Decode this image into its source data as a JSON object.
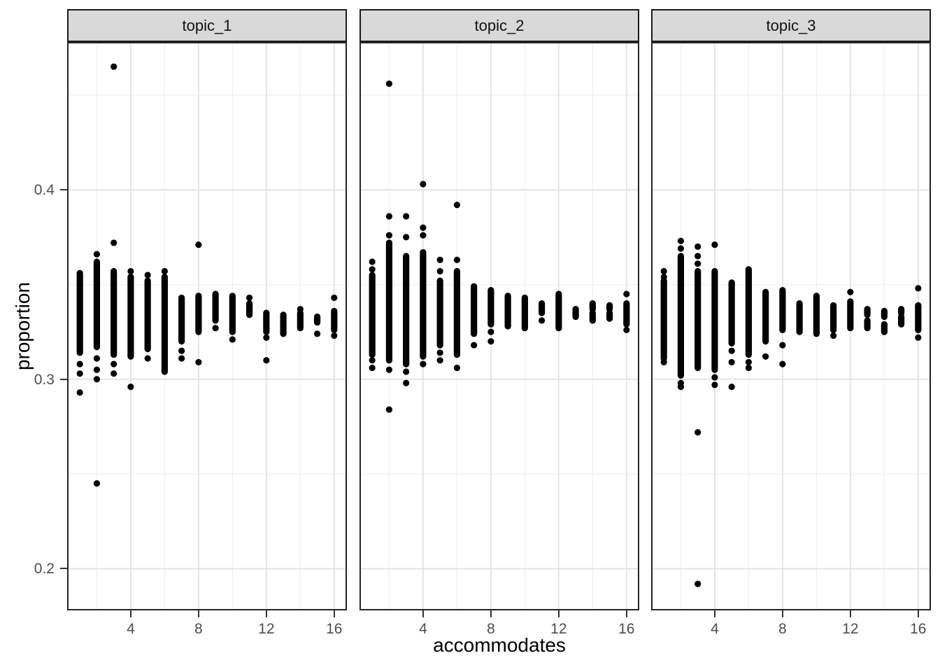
{
  "style": {
    "background": "#ffffff",
    "point_color": "#000000",
    "strip_fill": "#d9d9d9",
    "strip_text_color": "#111111",
    "panel_border_color": "#262626",
    "axis_text_color": "#4d4d4d",
    "axis_title_color": "#000000",
    "tick_color": "#333333",
    "grid_major_color": "#e4e4e4",
    "grid_minor_color": "#f1f1f1"
  },
  "chart_data": {
    "type": "scatter",
    "title": "",
    "xlabel": "accommodates",
    "ylabel": "proportion",
    "facet_labels": [
      "topic_1",
      "topic_2",
      "topic_3"
    ],
    "xlim": [
      0.25,
      16.75
    ],
    "ylim": [
      0.178,
      0.478
    ],
    "x_major_ticks": [
      4,
      8,
      12,
      16
    ],
    "y_major_ticks": [
      0.2,
      0.3,
      0.4
    ],
    "x_minor_gridlines": [
      2,
      6,
      10,
      14
    ],
    "y_minor_gridlines": [
      0.25,
      0.35,
      0.45
    ],
    "grid": true,
    "legend": false,
    "note": "Each column is a dense stack of overplotted black points; segments give [min,max] proportion of continuous point runs per accommodates value, dots are isolated points.",
    "panels": [
      {
        "label": "topic_1",
        "columns": [
          {
            "x": 1,
            "segments": [
              [
                0.314,
                0.356
              ]
            ],
            "dots": [
              0.308,
              0.303,
              0.293
            ]
          },
          {
            "x": 2,
            "segments": [
              [
                0.317,
                0.362
              ]
            ],
            "dots": [
              0.366,
              0.311,
              0.305,
              0.3,
              0.245
            ]
          },
          {
            "x": 3,
            "segments": [
              [
                0.313,
                0.356
              ]
            ],
            "dots": [
              0.465,
              0.372,
              0.357,
              0.308,
              0.303
            ]
          },
          {
            "x": 4,
            "segments": [
              [
                0.312,
                0.354
              ]
            ],
            "dots": [
              0.357,
              0.296
            ]
          },
          {
            "x": 5,
            "segments": [
              [
                0.316,
                0.352
              ]
            ],
            "dots": [
              0.355,
              0.311
            ]
          },
          {
            "x": 6,
            "segments": [
              [
                0.304,
                0.354
              ]
            ],
            "dots": [
              0.357
            ]
          },
          {
            "x": 7,
            "segments": [
              [
                0.32,
                0.343
              ]
            ],
            "dots": [
              0.315,
              0.311
            ]
          },
          {
            "x": 8,
            "segments": [
              [
                0.325,
                0.344
              ]
            ],
            "dots": [
              0.371,
              0.309
            ]
          },
          {
            "x": 9,
            "segments": [
              [
                0.331,
                0.345
              ]
            ],
            "dots": [
              0.327
            ]
          },
          {
            "x": 10,
            "segments": [
              [
                0.325,
                0.344
              ]
            ],
            "dots": [
              0.321
            ]
          },
          {
            "x": 11,
            "segments": [
              [
                0.334,
                0.34
              ]
            ],
            "dots": [
              0.343
            ]
          },
          {
            "x": 12,
            "segments": [
              [
                0.325,
                0.335
              ]
            ],
            "dots": [
              0.322,
              0.31
            ]
          },
          {
            "x": 13,
            "segments": [
              [
                0.324,
                0.334
              ]
            ],
            "dots": []
          },
          {
            "x": 14,
            "segments": [
              [
                0.327,
                0.335
              ]
            ],
            "dots": [
              0.337
            ]
          },
          {
            "x": 15,
            "segments": [
              [
                0.33,
                0.333
              ]
            ],
            "dots": [
              0.324
            ]
          },
          {
            "x": 16,
            "segments": [
              [
                0.326,
                0.336
              ]
            ],
            "dots": [
              0.343,
              0.323
            ]
          }
        ]
      },
      {
        "label": "topic_2",
        "columns": [
          {
            "x": 1,
            "segments": [
              [
                0.313,
                0.355
              ]
            ],
            "dots": [
              0.362,
              0.358,
              0.31,
              0.306
            ]
          },
          {
            "x": 2,
            "segments": [
              [
                0.31,
                0.372
              ]
            ],
            "dots": [
              0.456,
              0.386,
              0.376,
              0.305,
              0.284
            ]
          },
          {
            "x": 3,
            "segments": [
              [
                0.308,
                0.365
              ]
            ],
            "dots": [
              0.386,
              0.375,
              0.304,
              0.298
            ]
          },
          {
            "x": 4,
            "segments": [
              [
                0.312,
                0.367
              ]
            ],
            "dots": [
              0.403,
              0.38,
              0.376,
              0.308
            ]
          },
          {
            "x": 5,
            "segments": [
              [
                0.318,
                0.352
              ]
            ],
            "dots": [
              0.363,
              0.357,
              0.314,
              0.31
            ]
          },
          {
            "x": 6,
            "segments": [
              [
                0.313,
                0.357
              ]
            ],
            "dots": [
              0.392,
              0.363,
              0.306
            ]
          },
          {
            "x": 7,
            "segments": [
              [
                0.324,
                0.349
              ]
            ],
            "dots": [
              0.318
            ]
          },
          {
            "x": 8,
            "segments": [
              [
                0.329,
                0.347
              ]
            ],
            "dots": [
              0.325,
              0.32
            ]
          },
          {
            "x": 9,
            "segments": [
              [
                0.328,
                0.344
              ]
            ],
            "dots": []
          },
          {
            "x": 10,
            "segments": [
              [
                0.327,
                0.343
              ]
            ],
            "dots": []
          },
          {
            "x": 11,
            "segments": [
              [
                0.335,
                0.34
              ]
            ],
            "dots": [
              0.331
            ]
          },
          {
            "x": 12,
            "segments": [
              [
                0.327,
                0.345
              ]
            ],
            "dots": []
          },
          {
            "x": 13,
            "segments": [
              [
                0.333,
                0.337
              ]
            ],
            "dots": []
          },
          {
            "x": 14,
            "segments": [
              [
                0.337,
                0.34
              ],
              [
                0.331,
                0.335
              ]
            ],
            "dots": []
          },
          {
            "x": 15,
            "segments": [
              [
                0.337,
                0.339
              ],
              [
                0.332,
                0.335
              ]
            ],
            "dots": []
          },
          {
            "x": 16,
            "segments": [
              [
                0.329,
                0.34
              ]
            ],
            "dots": [
              0.345,
              0.326
            ]
          }
        ]
      },
      {
        "label": "topic_3",
        "columns": [
          {
            "x": 1,
            "segments": [
              [
                0.311,
                0.352
              ]
            ],
            "dots": [
              0.357,
              0.354,
              0.309
            ]
          },
          {
            "x": 2,
            "segments": [
              [
                0.302,
                0.365
              ]
            ],
            "dots": [
              0.373,
              0.369,
              0.298,
              0.296
            ]
          },
          {
            "x": 3,
            "segments": [
              [
                0.306,
                0.357
              ]
            ],
            "dots": [
              0.37,
              0.365,
              0.361,
              0.272,
              0.192
            ]
          },
          {
            "x": 4,
            "segments": [
              [
                0.305,
                0.357
              ]
            ],
            "dots": [
              0.371,
              0.301,
              0.297
            ]
          },
          {
            "x": 5,
            "segments": [
              [
                0.319,
                0.351
              ]
            ],
            "dots": [
              0.315,
              0.309,
              0.296
            ]
          },
          {
            "x": 6,
            "segments": [
              [
                0.313,
                0.358
              ]
            ],
            "dots": [
              0.309,
              0.306
            ]
          },
          {
            "x": 7,
            "segments": [
              [
                0.32,
                0.346
              ]
            ],
            "dots": [
              0.312
            ]
          },
          {
            "x": 8,
            "segments": [
              [
                0.326,
                0.347
              ]
            ],
            "dots": [
              0.318,
              0.308
            ]
          },
          {
            "x": 9,
            "segments": [
              [
                0.325,
                0.34
              ]
            ],
            "dots": []
          },
          {
            "x": 10,
            "segments": [
              [
                0.324,
                0.344
              ]
            ],
            "dots": []
          },
          {
            "x": 11,
            "segments": [
              [
                0.326,
                0.339
              ]
            ],
            "dots": [
              0.323
            ]
          },
          {
            "x": 12,
            "segments": [
              [
                0.327,
                0.341
              ]
            ],
            "dots": [
              0.346
            ]
          },
          {
            "x": 13,
            "segments": [
              [
                0.334,
                0.337
              ],
              [
                0.327,
                0.331
              ]
            ],
            "dots": []
          },
          {
            "x": 14,
            "segments": [
              [
                0.333,
                0.336
              ],
              [
                0.325,
                0.329
              ]
            ],
            "dots": []
          },
          {
            "x": 15,
            "segments": [
              [
                0.335,
                0.337
              ],
              [
                0.329,
                0.333
              ]
            ],
            "dots": []
          },
          {
            "x": 16,
            "segments": [
              [
                0.326,
                0.339
              ]
            ],
            "dots": [
              0.348,
              0.322
            ]
          }
        ]
      }
    ]
  }
}
